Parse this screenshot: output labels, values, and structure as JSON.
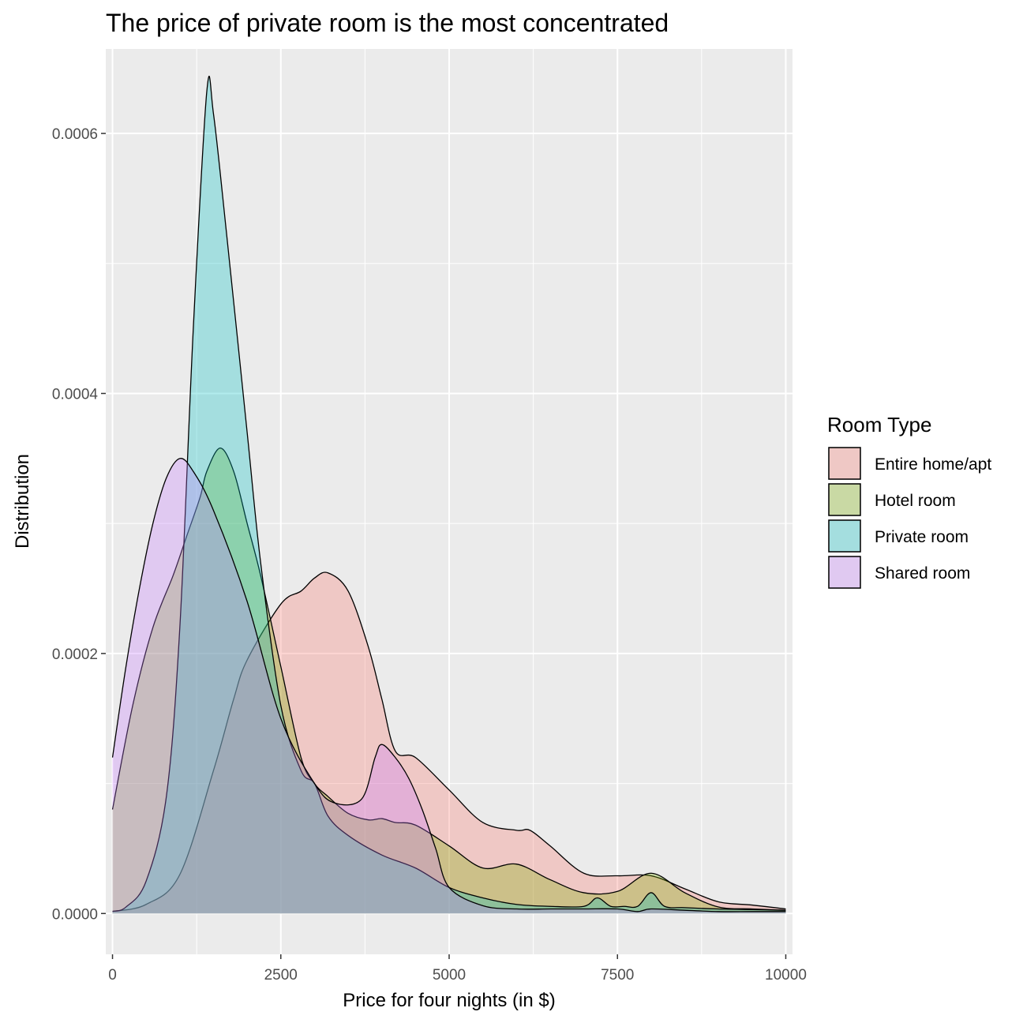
{
  "chart_data": {
    "type": "area",
    "title": "The price of private room is the most concentrated",
    "xlabel": "Price for four nights (in $)",
    "ylabel": "Distribution",
    "xlim": [
      -100,
      10100
    ],
    "ylim": [
      -3.14e-05,
      0.000665
    ],
    "x_ticks": [
      0,
      2500,
      5000,
      7500,
      10000
    ],
    "x_tick_labels": [
      "0",
      "2500",
      "5000",
      "7500",
      "10000"
    ],
    "y_ticks": [
      0.0,
      0.0002,
      0.0004,
      0.0006
    ],
    "y_tick_labels": [
      "0.0000",
      "0.0002",
      "0.0004",
      "0.0006"
    ],
    "grid": true,
    "legend": {
      "title": "Room Type",
      "position": "right"
    },
    "series": [
      {
        "name": "Entire home/apt",
        "color": "#F8766D",
        "x": [
          0,
          500,
          1000,
          1500,
          1800,
          2000,
          2500,
          2800,
          3000,
          3200,
          3500,
          3800,
          4000,
          4200,
          4500,
          5000,
          5500,
          6000,
          6200,
          6500,
          7000,
          7500,
          8000,
          8500,
          9000,
          9500,
          10000
        ],
        "y": [
          1.6e-06,
          7e-06,
          3e-05,
          0.00011,
          0.000165,
          0.000195,
          0.000238,
          0.000248,
          0.000258,
          0.000262,
          0.000248,
          0.000205,
          0.000165,
          0.000125,
          0.00012,
          9.5e-05,
          7e-05,
          6.4e-05,
          6.4e-05,
          5.2e-05,
          3.1e-05,
          2.9e-05,
          2.9e-05,
          1.9e-05,
          9e-06,
          6.5e-06,
          3.5e-06
        ]
      },
      {
        "name": "Hotel room",
        "color": "#7CAE00",
        "x": [
          0,
          300,
          600,
          900,
          1100,
          1300,
          1400,
          1600,
          1800,
          2000,
          2200,
          2500,
          2800,
          3000,
          3200,
          3500,
          3800,
          4000,
          4200,
          4500,
          5000,
          5500,
          6000,
          6500,
          7000,
          7500,
          8000,
          8500,
          9000,
          9500,
          10000
        ],
        "y": [
          8e-05,
          0.00016,
          0.00022,
          0.00026,
          0.00029,
          0.00032,
          0.00034,
          0.000358,
          0.00034,
          0.0003,
          0.00026,
          0.00019,
          0.00012,
          0.0001,
          9e-05,
          7.7e-05,
          7.2e-05,
          7.3e-05,
          7e-05,
          6.8e-05,
          5.2e-05,
          3.5e-05,
          3.8e-05,
          2.6e-05,
          1.6e-05,
          1.7e-05,
          3.1e-05,
          1.6e-05,
          5e-06,
          3.5e-06,
          2.5e-06
        ]
      },
      {
        "name": "Private room",
        "color": "#00BFC4",
        "x": [
          0,
          200,
          500,
          800,
          1000,
          1200,
          1400,
          1500,
          1700,
          2000,
          2200,
          2500,
          2800,
          3000,
          3200,
          3500,
          4000,
          4500,
          5000,
          5500,
          6000,
          6500,
          7000,
          7200,
          7400,
          7600,
          7800,
          8000,
          8200,
          8500,
          9000,
          9500,
          10000
        ],
        "y": [
          1.6e-06,
          5e-06,
          2.5e-05,
          9e-05,
          0.00022,
          0.00045,
          0.000632,
          0.000615,
          0.00052,
          0.00037,
          0.00027,
          0.00016,
          0.00011,
          0.0001,
          7.5e-05,
          6e-05,
          4.5e-05,
          3.5e-05,
          2e-05,
          1.2e-05,
          7e-06,
          5.5e-06,
          5.5e-06,
          1.2e-05,
          5.5e-06,
          5.5e-06,
          5.5e-06,
          1.6e-05,
          5.5e-06,
          4.5e-06,
          3.5e-06,
          3e-06,
          2.5e-06
        ]
      },
      {
        "name": "Shared room",
        "color": "#C77CFF",
        "x": [
          0,
          200,
          400,
          600,
          800,
          1000,
          1200,
          1500,
          2000,
          2500,
          3000,
          3300,
          3700,
          3900,
          4000,
          4200,
          4400,
          4600,
          4800,
          5000,
          5500,
          6000,
          6500,
          7000,
          7500,
          7800,
          8000,
          8500,
          9000,
          9500,
          10000
        ],
        "y": [
          0.00012,
          0.00019,
          0.00025,
          0.0003,
          0.000335,
          0.00035,
          0.00034,
          0.00031,
          0.00024,
          0.00015,
          0.0001,
          8.5e-05,
          8.8e-05,
          0.00012,
          0.00013,
          0.00012,
          0.000104,
          8e-05,
          5e-05,
          2e-05,
          6e-06,
          3.5e-06,
          3.5e-06,
          3.5e-06,
          3.5e-06,
          1.5e-06,
          3.5e-06,
          2.5e-06,
          1.5e-06,
          1.5e-06,
          1.5e-06
        ]
      }
    ]
  }
}
